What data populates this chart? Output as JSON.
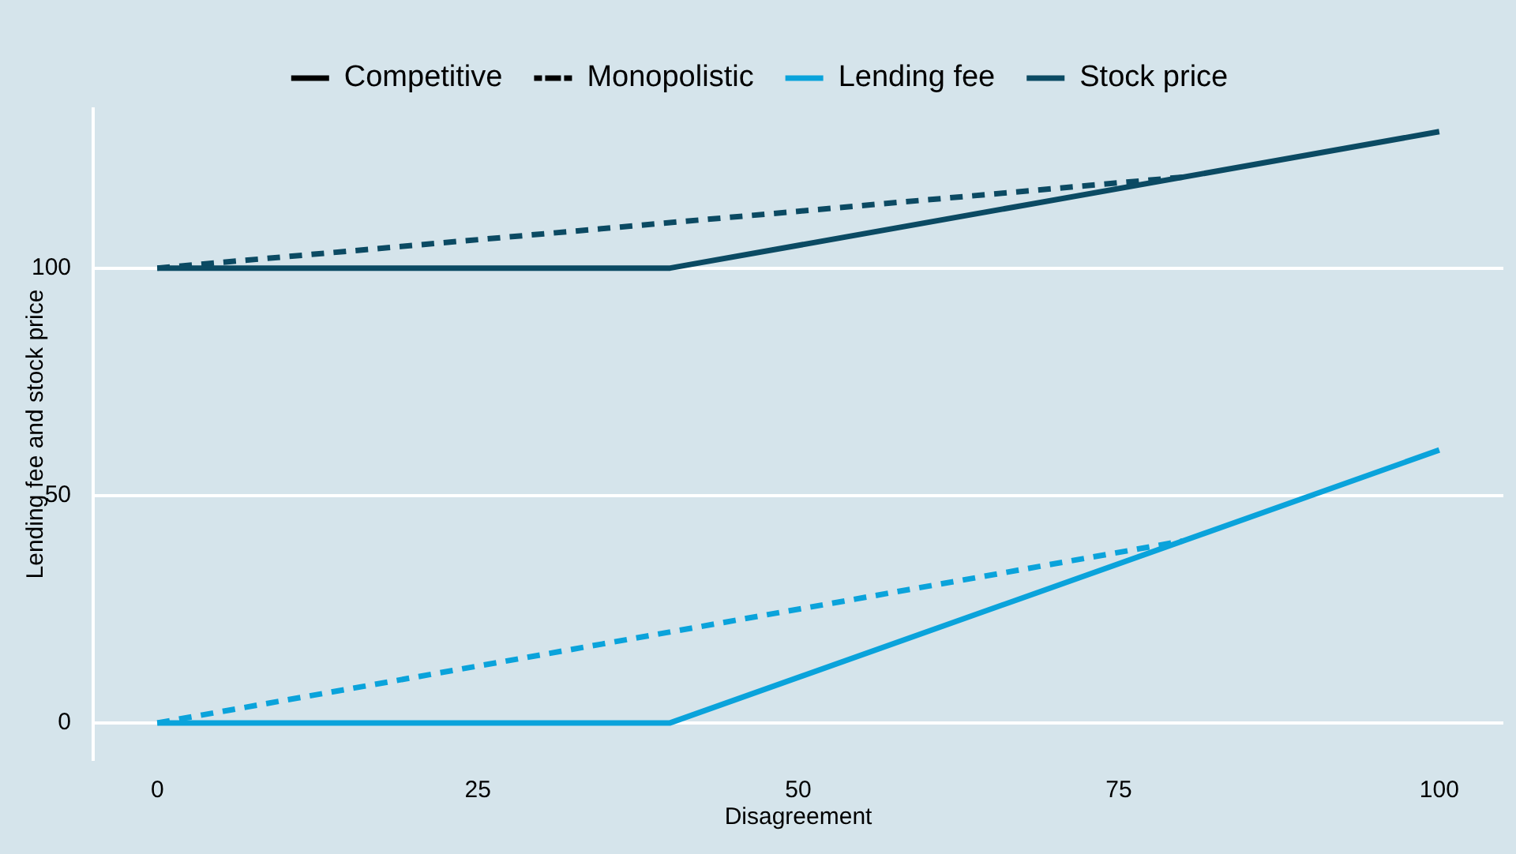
{
  "chart_data": {
    "type": "line",
    "xlabel": "Disagreement",
    "ylabel": "Lending fee and stock price",
    "xlim": [
      -5,
      105
    ],
    "ylim": [
      -8,
      135
    ],
    "xticks": [
      0,
      25,
      50,
      75,
      100
    ],
    "yticks": [
      0,
      50,
      100
    ],
    "grid": "y",
    "legend": "top",
    "marker": "none",
    "series": [
      {
        "name": "Competitive",
        "color": "#000000",
        "line_style": "solid"
      },
      {
        "name": "Monopolistic",
        "color": "#000000",
        "line_style": "dotted"
      },
      {
        "name": "Lending fee",
        "color": "#0aa3db",
        "line_style": "solid",
        "x": [
          0,
          40,
          100
        ],
        "values": [
          0,
          0,
          60
        ]
      },
      {
        "name": "Stock price",
        "color": "#0b4a63",
        "line_style": "solid",
        "x": [
          0,
          40,
          100
        ],
        "values": [
          100,
          100,
          130
        ]
      },
      {
        "color": "#0aa3db",
        "line_style": "dashed",
        "x": [
          0,
          80
        ],
        "values": [
          0,
          40
        ]
      },
      {
        "color": "#0b4a63",
        "line_style": "dashed",
        "x": [
          0,
          80
        ],
        "values": [
          100,
          120
        ]
      }
    ]
  }
}
